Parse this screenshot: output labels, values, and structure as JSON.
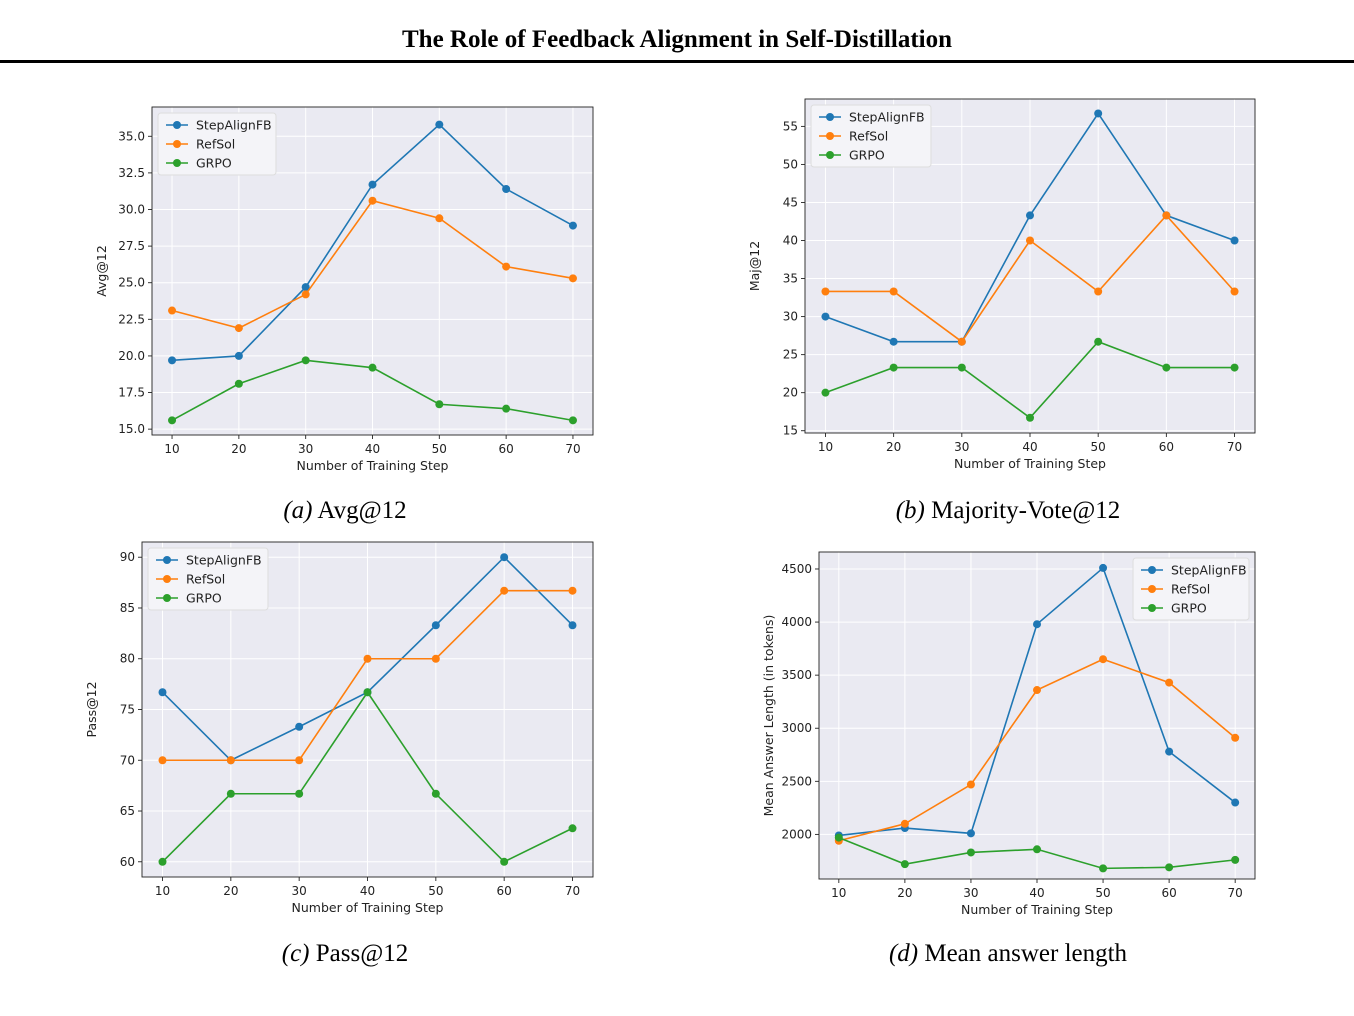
{
  "header": {
    "title": "The Role of Feedback Alignment in Self-Distillation"
  },
  "colors": {
    "StepAlignFB": "#1f77b4",
    "RefSol": "#ff7f0e",
    "GRPO": "#2ca02c",
    "plot_bg": "#eaeaf2",
    "grid": "#ffffff"
  },
  "captions": [
    {
      "letter": "(a)",
      "text": "Avg@12"
    },
    {
      "letter": "(b)",
      "text": "Majority-Vote@12"
    },
    {
      "letter": "(c)",
      "text": "Pass@12"
    },
    {
      "letter": "(d)",
      "text": "Mean answer length"
    }
  ],
  "chart_data": [
    {
      "type": "line",
      "title": "",
      "xlabel": "Number of Training Step",
      "ylabel": "Avg@12",
      "x": [
        10,
        20,
        30,
        40,
        50,
        60,
        70
      ],
      "xlim": [
        7,
        73
      ],
      "ylim": [
        14.6,
        37.0
      ],
      "yticks": [
        15.0,
        17.5,
        20.0,
        22.5,
        25.0,
        27.5,
        30.0,
        32.5,
        35.0
      ],
      "ytick_labels": [
        "15.0",
        "17.5",
        "20.0",
        "22.5",
        "25.0",
        "27.5",
        "30.0",
        "32.5",
        "35.0"
      ],
      "grid": true,
      "legend": "top-left",
      "series": [
        {
          "name": "StepAlignFB",
          "values": [
            19.7,
            20.0,
            24.7,
            31.7,
            35.8,
            31.4,
            28.9
          ]
        },
        {
          "name": "RefSol",
          "values": [
            23.1,
            21.9,
            24.2,
            30.6,
            29.4,
            26.1,
            25.3
          ]
        },
        {
          "name": "GRPO",
          "values": [
            15.6,
            18.1,
            19.7,
            19.2,
            16.7,
            16.4,
            15.6
          ]
        }
      ]
    },
    {
      "type": "line",
      "title": "",
      "xlabel": "Number of Training Step",
      "ylabel": "Maj@12",
      "x": [
        10,
        20,
        30,
        40,
        50,
        60,
        70
      ],
      "xlim": [
        7,
        73
      ],
      "ylim": [
        14.7,
        58.6
      ],
      "yticks": [
        15,
        20,
        25,
        30,
        35,
        40,
        45,
        50,
        55
      ],
      "ytick_labels": [
        "15",
        "20",
        "25",
        "30",
        "35",
        "40",
        "45",
        "50",
        "55"
      ],
      "grid": true,
      "legend": "top-left",
      "series": [
        {
          "name": "StepAlignFB",
          "values": [
            30.0,
            26.7,
            26.7,
            43.3,
            56.7,
            43.3,
            40.0
          ]
        },
        {
          "name": "RefSol",
          "values": [
            33.3,
            33.3,
            26.7,
            40.0,
            33.3,
            43.3,
            33.3
          ]
        },
        {
          "name": "GRPO",
          "values": [
            20.0,
            23.3,
            23.3,
            16.7,
            26.7,
            23.3,
            23.3
          ]
        }
      ]
    },
    {
      "type": "line",
      "title": "",
      "xlabel": "Number of Training Step",
      "ylabel": "Pass@12",
      "x": [
        10,
        20,
        30,
        40,
        50,
        60,
        70
      ],
      "xlim": [
        7,
        73
      ],
      "ylim": [
        58.5,
        91.5
      ],
      "yticks": [
        60,
        65,
        70,
        75,
        80,
        85,
        90
      ],
      "ytick_labels": [
        "60",
        "65",
        "70",
        "75",
        "80",
        "85",
        "90"
      ],
      "grid": true,
      "legend": "top-left",
      "series": [
        {
          "name": "StepAlignFB",
          "values": [
            76.7,
            70.0,
            73.3,
            76.7,
            83.3,
            90.0,
            83.3
          ]
        },
        {
          "name": "RefSol",
          "values": [
            70.0,
            70.0,
            70.0,
            80.0,
            80.0,
            86.7,
            86.7
          ]
        },
        {
          "name": "GRPO",
          "values": [
            60.0,
            66.7,
            66.7,
            76.7,
            66.7,
            60.0,
            63.3
          ]
        }
      ]
    },
    {
      "type": "line",
      "title": "",
      "xlabel": "Number of Training Step",
      "ylabel": "Mean Answer Length (in tokens)",
      "x": [
        10,
        20,
        30,
        40,
        50,
        60,
        70
      ],
      "xlim": [
        7,
        73
      ],
      "ylim": [
        1580,
        4660
      ],
      "yticks": [
        2000,
        2500,
        3000,
        3500,
        4000,
        4500
      ],
      "ytick_labels": [
        "2000",
        "2500",
        "3000",
        "3500",
        "4000",
        "4500"
      ],
      "grid": true,
      "legend": "top-right",
      "series": [
        {
          "name": "StepAlignFB",
          "values": [
            1990,
            2060,
            2010,
            3980,
            4510,
            2780,
            2300
          ]
        },
        {
          "name": "RefSol",
          "values": [
            1940,
            2100,
            2470,
            3360,
            3650,
            3430,
            2910
          ]
        },
        {
          "name": "GRPO",
          "values": [
            1970,
            1720,
            1830,
            1860,
            1680,
            1690,
            1760
          ]
        }
      ]
    }
  ]
}
